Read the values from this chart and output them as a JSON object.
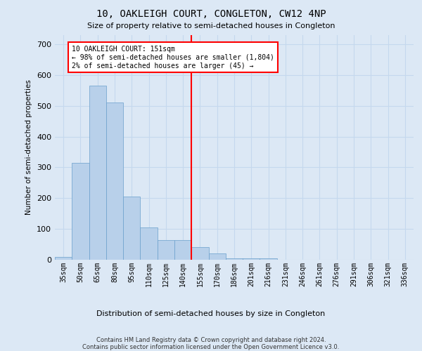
{
  "title": "10, OAKLEIGH COURT, CONGLETON, CW12 4NP",
  "subtitle": "Size of property relative to semi-detached houses in Congleton",
  "xlabel": "Distribution of semi-detached houses by size in Congleton",
  "ylabel": "Number of semi-detached properties",
  "bar_labels": [
    "35sqm",
    "50sqm",
    "65sqm",
    "80sqm",
    "95sqm",
    "110sqm",
    "125sqm",
    "140sqm",
    "155sqm",
    "170sqm",
    "186sqm",
    "201sqm",
    "216sqm",
    "231sqm",
    "246sqm",
    "261sqm",
    "276sqm",
    "291sqm",
    "306sqm",
    "321sqm",
    "336sqm"
  ],
  "bar_values": [
    10,
    315,
    565,
    510,
    205,
    105,
    65,
    65,
    40,
    20,
    5,
    5,
    5,
    0,
    0,
    0,
    0,
    0,
    0,
    0,
    0
  ],
  "bar_color": "#b8d0ea",
  "bar_edge_color": "#6aa0cc",
  "grid_color": "#c5d8ee",
  "background_color": "#dce8f5",
  "vline_color": "red",
  "annotation_text": "10 OAKLEIGH COURT: 151sqm\n← 98% of semi-detached houses are smaller (1,804)\n2% of semi-detached houses are larger (45) →",
  "annotation_box_color": "white",
  "annotation_box_edge": "red",
  "footer_text": "Contains HM Land Registry data © Crown copyright and database right 2024.\nContains public sector information licensed under the Open Government Licence v3.0.",
  "ylim": [
    0,
    730
  ],
  "yticks": [
    0,
    100,
    200,
    300,
    400,
    500,
    600,
    700
  ],
  "vline_index": 8
}
